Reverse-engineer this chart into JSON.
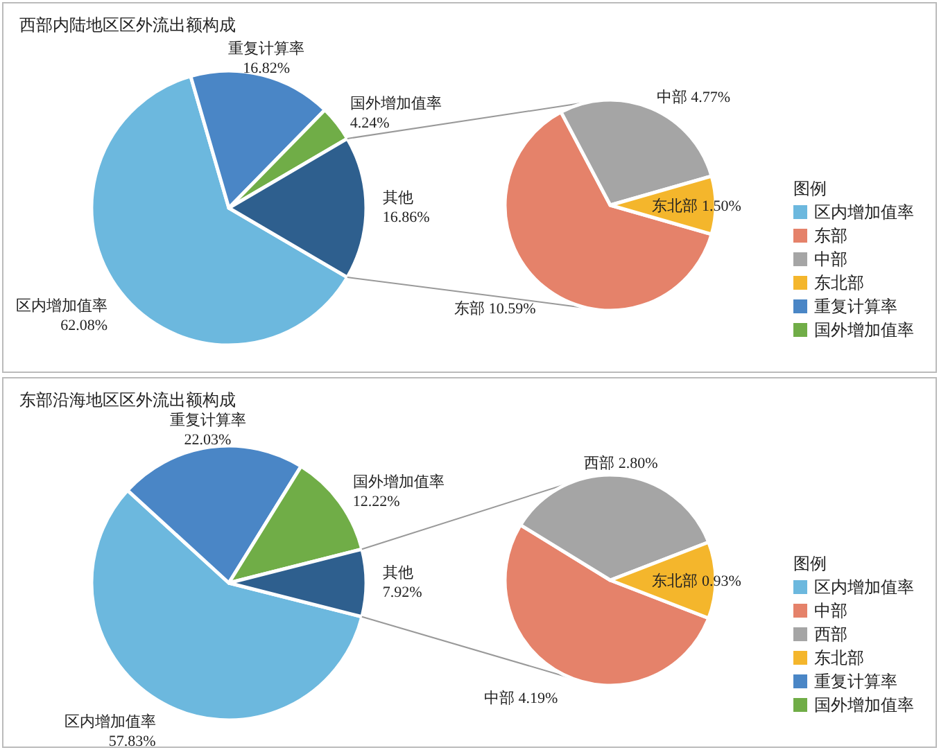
{
  "chart_data": [
    {
      "type": "pie",
      "title": "西部内陆地区区外流出额构成",
      "categories": [
        "区内增加值率",
        "重复计算率",
        "国外增加值率",
        "其他"
      ],
      "values": [
        62.08,
        16.82,
        4.24,
        16.86
      ],
      "colors": [
        "#6cb8de",
        "#4a86c6",
        "#70ad47",
        "#2e5f8e"
      ],
      "value_labels": [
        "62.08%",
        "16.82%",
        "4.24%",
        "16.86%"
      ]
    },
    {
      "type": "pie",
      "categories": [
        "东部",
        "中部",
        "东北部"
      ],
      "values": [
        10.59,
        4.77,
        1.5
      ],
      "colors": [
        "#e5826a",
        "#a5a5a5",
        "#f4b62c"
      ],
      "value_labels": [
        "10.59%",
        "4.77%",
        "1.50%"
      ],
      "legend": "right",
      "legend_title": "图例"
    },
    {
      "type": "pie",
      "title": "东部沿海地区区外流出额构成",
      "categories": [
        "区内增加值率",
        "重复计算率",
        "国外增加值率",
        "其他"
      ],
      "values": [
        57.83,
        22.03,
        12.22,
        7.92
      ],
      "colors": [
        "#6cb8de",
        "#4a86c6",
        "#70ad47",
        "#2e5f8e"
      ],
      "value_labels": [
        "57.83%",
        "22.03%",
        "12.22%",
        "7.92%"
      ]
    },
    {
      "type": "pie",
      "categories": [
        "中部",
        "西部",
        "东北部"
      ],
      "values": [
        4.19,
        2.8,
        0.93
      ],
      "colors": [
        "#e5826a",
        "#a5a5a5",
        "#f4b62c"
      ],
      "value_labels": [
        "4.19%",
        "2.80%",
        "0.93%"
      ],
      "legend": "right",
      "legend_title": "图例"
    }
  ]
}
